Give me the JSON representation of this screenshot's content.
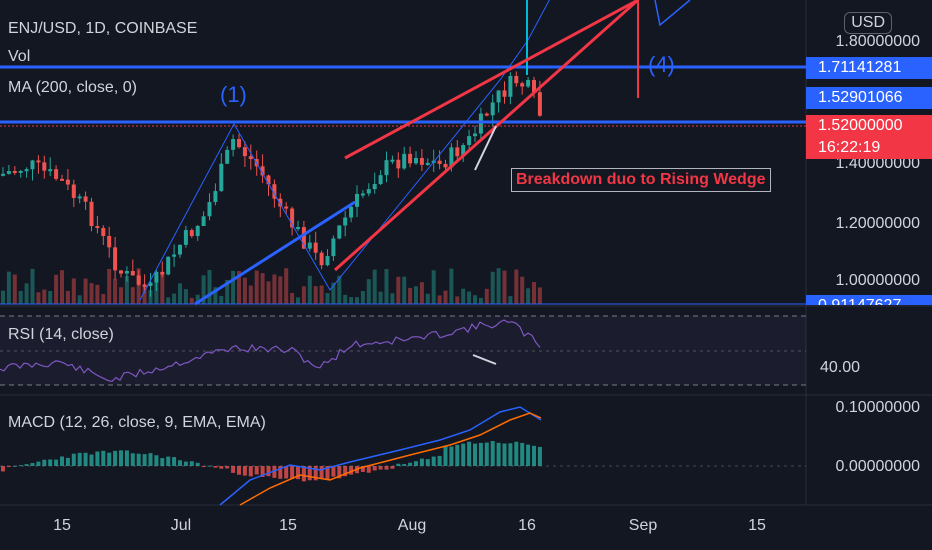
{
  "header": {
    "symbol_line": "ENJ/USD, 1D, COINBASE",
    "vol_label": "Vol",
    "ma_label": "MA (200, close, 0)"
  },
  "currency_button": "USD",
  "price_axis": {
    "ticks": [
      "1.80000000",
      "1.40000000",
      "1.20000000",
      "1.00000000"
    ],
    "tag_upper": "1.71141281",
    "tag_mid": "1.52901066",
    "tag_price": "1.52000000",
    "tag_countdown": "16:22:19",
    "tag_bottom": "0.91147627"
  },
  "rsi": {
    "label": "RSI (14, close)",
    "tick": "40.00"
  },
  "macd": {
    "label": "MACD (12, 26, close, 9, EMA, EMA)",
    "ticks": [
      "0.10000000",
      "0.00000000"
    ]
  },
  "time_axis": [
    "15",
    "Jul",
    "15",
    "Aug",
    "16",
    "Sep",
    "15"
  ],
  "annotations": {
    "wave_1": "(1)",
    "wave_4": "(4)",
    "callout": "Breakdown duo to Rising Wedge"
  },
  "colors": {
    "background": "#131722",
    "up": "#26a69a",
    "down": "#ef5350",
    "level_line": "#2962ff",
    "wedge": "#f23645",
    "rsi_line": "#7e57c2",
    "macd_line": "#2962ff",
    "signal_line": "#ff6d00"
  },
  "chart_data": {
    "type": "candlestick",
    "symbol": "ENJ/USD",
    "interval": "1D",
    "exchange": "COINBASE",
    "price_levels": [
      1.71141281,
      1.52901066,
      1.52
    ],
    "last_price": 1.52,
    "time_ticks": [
      "15",
      "Jul",
      "15",
      "Aug",
      "16",
      "Sep",
      "15"
    ],
    "rsi_level": 40.0,
    "macd_ticks": [
      0.1,
      0.0
    ]
  }
}
